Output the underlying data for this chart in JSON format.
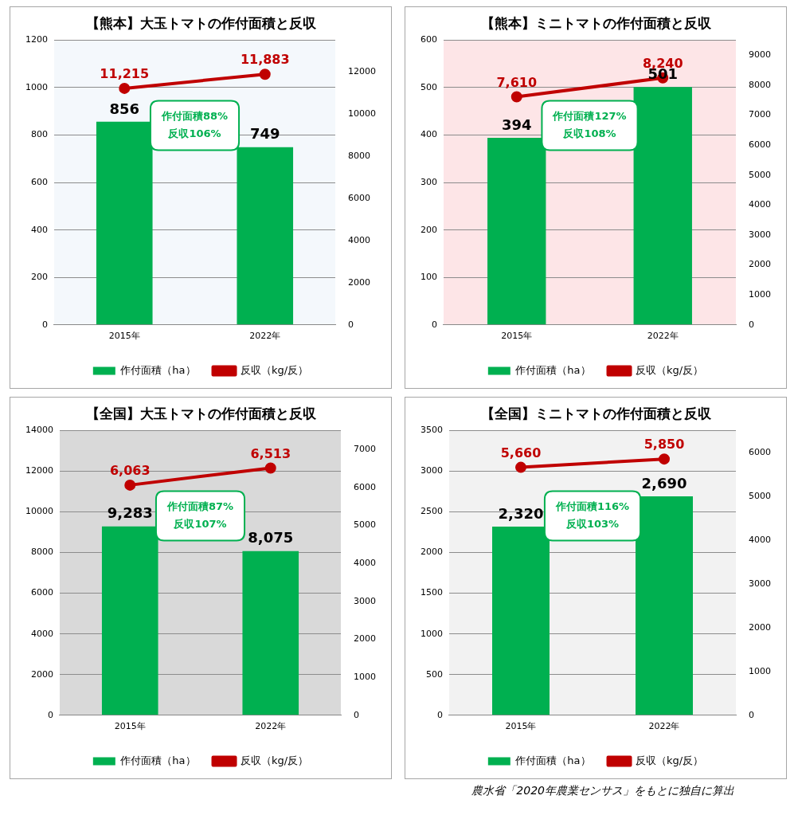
{
  "chart_data": [
    {
      "type": "bar",
      "title": "【熊本】大玉トマトの作付面積と反収",
      "categories": [
        "2015年",
        "2022年"
      ],
      "ylim": [
        0,
        1200
      ],
      "yticks": [
        0,
        200,
        400,
        600,
        800,
        1000,
        1200
      ],
      "y2lim": [
        0,
        13500
      ],
      "y2ticks": [
        0,
        2000,
        4000,
        6000,
        8000,
        10000,
        12000
      ],
      "grid": "y",
      "legend": "bottom",
      "marker": "circle",
      "annotations": [
        "作付面積88%",
        "反収106%"
      ],
      "series": [
        {
          "name": "作付面積（ha）",
          "type": "bar",
          "color": "#00b050",
          "values": [
            856,
            749
          ],
          "value_labels": [
            "856",
            "749"
          ]
        },
        {
          "name": "反収（kg/反）",
          "type": "line",
          "axis": "y2",
          "color": "#c00000",
          "values": [
            11215,
            11883
          ],
          "value_labels": [
            "11,215",
            "11,883"
          ]
        }
      ]
    },
    {
      "type": "bar",
      "title": "【熊本】ミニトマトの作付面積と反収",
      "categories": [
        "2015年",
        "2022年"
      ],
      "ylim": [
        0,
        600
      ],
      "yticks": [
        0,
        100,
        200,
        300,
        400,
        500,
        600
      ],
      "y2lim": [
        0,
        9500
      ],
      "y2ticks": [
        0,
        1000,
        2000,
        3000,
        4000,
        5000,
        6000,
        7000,
        8000,
        9000
      ],
      "grid": "y",
      "legend": "bottom",
      "marker": "circle",
      "annotations": [
        "作付面積127%",
        "反収108%"
      ],
      "series": [
        {
          "name": "作付面積（ha）",
          "type": "bar",
          "color": "#00b050",
          "values": [
            394,
            501
          ],
          "value_labels": [
            "394",
            "501"
          ]
        },
        {
          "name": "反収（kg/反）",
          "type": "line",
          "axis": "y2",
          "color": "#c00000",
          "values": [
            7610,
            8240
          ],
          "value_labels": [
            "7,610",
            "8,240"
          ]
        }
      ]
    },
    {
      "type": "bar",
      "title": "【全国】大玉トマトの作付面積と反収",
      "categories": [
        "2015年",
        "2022年"
      ],
      "ylim": [
        0,
        14000
      ],
      "yticks": [
        0,
        2000,
        4000,
        6000,
        8000,
        10000,
        12000,
        14000
      ],
      "y2lim": [
        0,
        7500
      ],
      "y2ticks": [
        0,
        1000,
        2000,
        3000,
        4000,
        5000,
        6000,
        7000
      ],
      "grid": "y",
      "legend": "bottom",
      "marker": "circle",
      "annotations": [
        "作付面積87%",
        "反収107%"
      ],
      "series": [
        {
          "name": "作付面積（ha）",
          "type": "bar",
          "color": "#00b050",
          "values": [
            9283,
            8075
          ],
          "value_labels": [
            "9,283",
            "8,075"
          ]
        },
        {
          "name": "反収（kg/反）",
          "type": "line",
          "axis": "y2",
          "color": "#c00000",
          "values": [
            6063,
            6513
          ],
          "value_labels": [
            "6,063",
            "6,513"
          ]
        }
      ]
    },
    {
      "type": "bar",
      "title": "【全国】ミニトマトの作付面積と反収",
      "categories": [
        "2015年",
        "2022年"
      ],
      "ylim": [
        0,
        3500
      ],
      "yticks": [
        0,
        500,
        1000,
        1500,
        2000,
        2500,
        3000,
        3500
      ],
      "y2lim": [
        0,
        6500
      ],
      "y2ticks": [
        0,
        1000,
        2000,
        3000,
        4000,
        5000,
        6000
      ],
      "grid": "y",
      "legend": "bottom",
      "marker": "circle",
      "annotations": [
        "作付面積116%",
        "反収103%"
      ],
      "series": [
        {
          "name": "作付面積（ha）",
          "type": "bar",
          "color": "#00b050",
          "values": [
            2320,
            2690
          ],
          "value_labels": [
            "2,320",
            "2,690"
          ]
        },
        {
          "name": "反収（kg/反）",
          "type": "line",
          "axis": "y2",
          "color": "#c00000",
          "values": [
            5660,
            5850
          ],
          "value_labels": [
            "5,660",
            "5,850"
          ]
        }
      ]
    },
    {
      "type": "other",
      "annotations": [
        "農水省「2020年農業センサス」をもとに独自に算出"
      ]
    }
  ]
}
